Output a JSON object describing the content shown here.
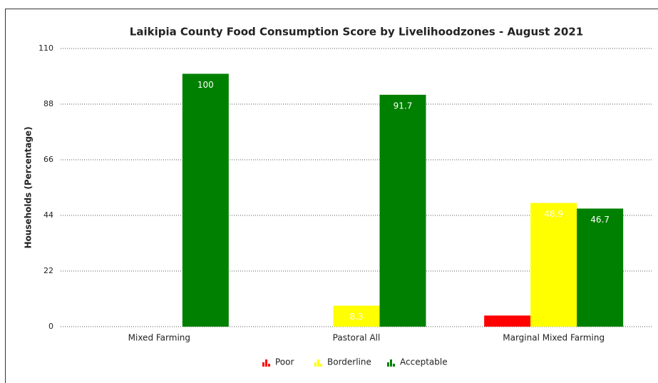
{
  "chart_data": {
    "type": "bar",
    "title": "Laikipia County Food Consumption Score by Livelihoodzones - August 2021",
    "y_label": "Households (Percentage)",
    "categories": [
      "Mixed Farming",
      "Pastoral All",
      "Marginal Mixed Farming"
    ],
    "series": [
      {
        "name": "Poor",
        "color": "#ff0000",
        "values": [
          null,
          null,
          4.4
        ]
      },
      {
        "name": "Borderline",
        "color": "#ffff00",
        "values": [
          null,
          8.3,
          48.9
        ]
      },
      {
        "name": "Acceptable",
        "color": "#008000",
        "values": [
          100,
          91.7,
          46.7
        ]
      }
    ],
    "ylim": [
      0,
      110
    ],
    "yticks": [
      0,
      22,
      44,
      66,
      88,
      110
    ],
    "grid": true,
    "legend": "bottom"
  }
}
